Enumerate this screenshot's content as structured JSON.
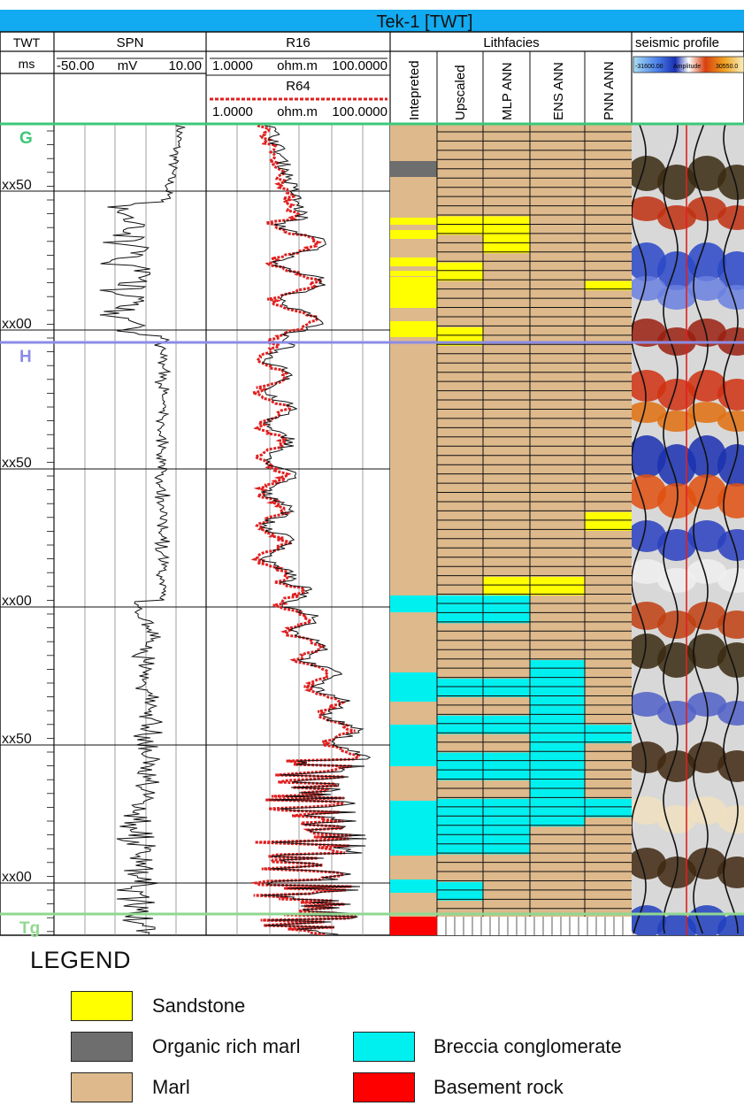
{
  "well_name": "Tek-1 [TWT]",
  "header": {
    "twt_title": "TWT",
    "twt_unit": "ms",
    "spn_title": "SPN",
    "spn_min": "-50.00",
    "spn_unit": "mV",
    "spn_max": "10.00",
    "r16_title": "R16",
    "r16_min": "1.0000",
    "r16_unit": "ohm.m",
    "r16_max": "100.0000",
    "r64_title": "R64",
    "r64_min": "1.0000",
    "r64_unit": "ohm.m",
    "r64_max": "100.0000",
    "litho_title": "Lithfacies",
    "litho_cols": [
      "Intepreted",
      "Upscaled",
      "MLP ANN",
      "ENS ANN",
      "PNN ANN"
    ],
    "seismic_title": "seismic profile",
    "seismic_min": "-31600.00",
    "seismic_label": "Amplitude",
    "seismic_max": "30550.0"
  },
  "depth_labels": [
    "xx50",
    "xx00",
    "xx50",
    "xx00",
    "xx50",
    "xx00"
  ],
  "horizons": [
    {
      "name": "G",
      "color": "#3cc878"
    },
    {
      "name": "H",
      "color": "#8c8ce6"
    },
    {
      "name": "Tg",
      "color": "#90d890"
    }
  ],
  "colors": {
    "sandstone": "#ffff00",
    "organic_rich_marl": "#6e6e6e",
    "marl": "#ddb98c",
    "breccia_conglomerate": "#00f0f0",
    "basement_rock": "#ff0000",
    "title_bar": "#12aaf0",
    "r64_curve": "#e02020"
  },
  "legend": {
    "title": "LEGEND",
    "items": [
      {
        "key": "sandstone",
        "label": "Sandstone"
      },
      {
        "key": "organic_rich_marl",
        "label": "Organic rich marl"
      },
      {
        "key": "breccia_conglomerate",
        "label": "Breccia conglomerate"
      },
      {
        "key": "marl",
        "label": "Marl"
      },
      {
        "key": "basement_rock",
        "label": "Basement rock"
      }
    ]
  }
}
